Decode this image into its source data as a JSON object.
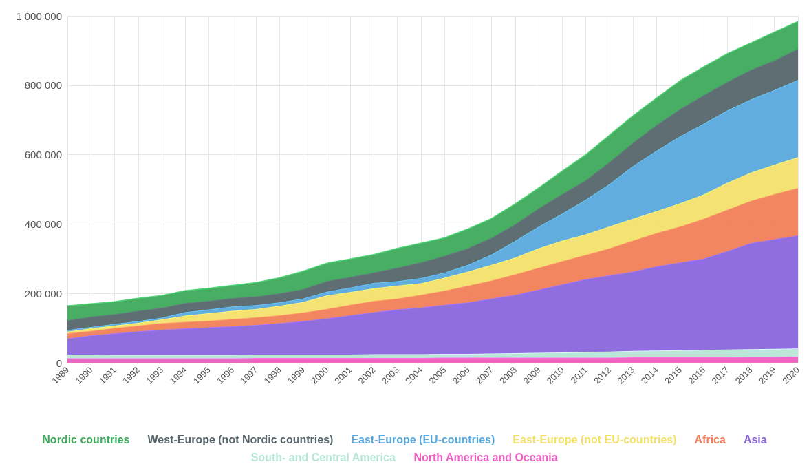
{
  "chart_data": {
    "type": "area",
    "stacked": true,
    "grid": true,
    "legend": "bottom",
    "categories": [
      "1989",
      "1990",
      "1991",
      "1992",
      "1993",
      "1994",
      "1995",
      "1996",
      "1997",
      "1998",
      "1999",
      "2000",
      "2001",
      "2002",
      "2003",
      "2004",
      "2005",
      "2006",
      "2007",
      "2008",
      "2009",
      "2010",
      "2011",
      "2012",
      "2013",
      "2014",
      "2015",
      "2016",
      "2017",
      "2018",
      "2019",
      "2020"
    ],
    "ylim": [
      0,
      1000000
    ],
    "yticks": [
      {
        "value": 0,
        "label": "0"
      },
      {
        "value": 200000,
        "label": "200 000"
      },
      {
        "value": 400000,
        "label": "400 000"
      },
      {
        "value": 600000,
        "label": "600 000"
      },
      {
        "value": 800000,
        "label": "800 000"
      },
      {
        "value": 1000000,
        "label": "1 000 000"
      }
    ],
    "series": [
      {
        "name": "North America and Oceania",
        "color": "#ee5fc2",
        "values": [
          13000,
          13000,
          13000,
          13000,
          13000,
          13000,
          13000,
          13000,
          14000,
          14000,
          14000,
          14000,
          14000,
          14000,
          14000,
          14000,
          15000,
          15000,
          15000,
          15000,
          15000,
          15000,
          15000,
          15000,
          16000,
          16000,
          16000,
          16000,
          16000,
          17000,
          17000,
          18000
        ]
      },
      {
        "name": "South- and Central America",
        "color": "#b8e6d6",
        "values": [
          11000,
          11000,
          10000,
          10000,
          10000,
          10000,
          10000,
          10000,
          10000,
          10000,
          10000,
          10000,
          10000,
          11000,
          11000,
          11000,
          11000,
          11000,
          12000,
          13000,
          14000,
          15000,
          16000,
          17000,
          18000,
          19000,
          20000,
          21000,
          22000,
          22000,
          23000,
          23000
        ]
      },
      {
        "name": "Asia",
        "color": "#8a66dd",
        "values": [
          46000,
          55000,
          62000,
          68000,
          72000,
          76000,
          79000,
          82000,
          85000,
          90000,
          96000,
          104000,
          113000,
          121000,
          129000,
          134000,
          141000,
          148000,
          158000,
          168000,
          182000,
          196000,
          210000,
          220000,
          229000,
          243000,
          253000,
          263000,
          284000,
          306000,
          316000,
          326000
        ]
      },
      {
        "name": "Africa",
        "color": "#f08058",
        "values": [
          15000,
          13000,
          15000,
          16000,
          19000,
          19000,
          19000,
          21000,
          22000,
          23000,
          25000,
          27000,
          30000,
          32000,
          31000,
          37000,
          41000,
          48000,
          52000,
          59000,
          63000,
          67000,
          70000,
          78000,
          89000,
          96000,
          104000,
          115000,
          119000,
          122000,
          130000,
          137000
        ]
      },
      {
        "name": "East-Europe (not EU-countries)",
        "color": "#f3e16a",
        "values": [
          5000,
          7000,
          7000,
          8000,
          11000,
          18000,
          22000,
          24000,
          24000,
          27000,
          30000,
          39000,
          37000,
          37000,
          37000,
          33000,
          37000,
          41000,
          45000,
          48000,
          56000,
          59000,
          59000,
          63000,
          63000,
          63000,
          67000,
          70000,
          78000,
          81000,
          85000,
          89000
        ]
      },
      {
        "name": "East-Europe (EU-countries)",
        "color": "#5aa9de",
        "values": [
          4000,
          4000,
          5000,
          5000,
          5000,
          10000,
          11000,
          12000,
          11000,
          10000,
          10000,
          11000,
          13000,
          15000,
          13000,
          15000,
          15000,
          19000,
          30000,
          48000,
          63000,
          78000,
          100000,
          122000,
          152000,
          174000,
          193000,
          204000,
          208000,
          211000,
          215000,
          222000
        ]
      },
      {
        "name": "West-Europe (not Nordic countries)",
        "color": "#56666b",
        "values": [
          28000,
          30000,
          28000,
          30000,
          28000,
          26000,
          24000,
          24000,
          25000,
          26000,
          27000,
          30000,
          30000,
          30000,
          39000,
          45000,
          48000,
          48000,
          48000,
          48000,
          52000,
          56000,
          56000,
          63000,
          67000,
          74000,
          78000,
          82000,
          82000,
          85000,
          85000,
          90000
        ]
      },
      {
        "name": "Nordic countries",
        "color": "#3daa5c",
        "values": [
          42000,
          37000,
          36000,
          36000,
          36000,
          36000,
          37000,
          37000,
          40000,
          45000,
          52000,
          52000,
          52000,
          52000,
          56000,
          56000,
          52000,
          56000,
          56000,
          59000,
          59000,
          67000,
          74000,
          78000,
          78000,
          78000,
          82000,
          82000,
          82000,
          78000,
          82000,
          79000
        ]
      }
    ]
  }
}
